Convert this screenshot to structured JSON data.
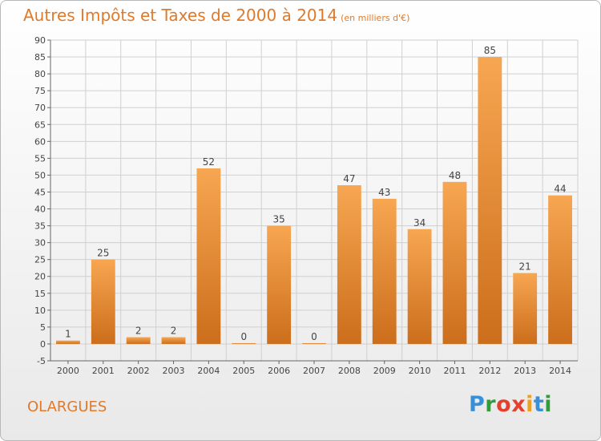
{
  "header": {
    "title": "Autres Impôts et Taxes de 2000 à 2014",
    "unit": "(en milliers d'€)"
  },
  "footer": {
    "town": "OLARGUES",
    "logo_text": "Proxiti"
  },
  "colors": {
    "title": "#e07a2a",
    "bar_light": "#f7a651",
    "bar_dark": "#cc6e1c",
    "logo": [
      "#3a8fd6",
      "#2f9e3a",
      "#e5402e",
      "#e5402e",
      "#f0a020",
      "#3a8fd6",
      "#2f9e3a"
    ]
  },
  "chart_data": {
    "type": "bar",
    "title": "Autres Impôts et Taxes de 2000 à 2014",
    "subtitle": "(en milliers d'€)",
    "categories": [
      "2000",
      "2001",
      "2002",
      "2003",
      "2004",
      "2005",
      "2006",
      "2007",
      "2008",
      "2009",
      "2010",
      "2011",
      "2012",
      "2013",
      "2014"
    ],
    "values": [
      1,
      25,
      2,
      2,
      52,
      0,
      35,
      0,
      47,
      43,
      34,
      48,
      85,
      21,
      44
    ],
    "data_labels": [
      "1",
      "25",
      "2",
      "2",
      "52",
      "0",
      "35",
      "0",
      "47",
      "43",
      "34",
      "48",
      "85",
      "21",
      "44"
    ],
    "ylim": [
      -5,
      90
    ],
    "yticks": [
      -5,
      0,
      5,
      10,
      15,
      20,
      25,
      30,
      35,
      40,
      45,
      50,
      55,
      60,
      65,
      70,
      75,
      80,
      85,
      90
    ],
    "grid": true,
    "legend": "none"
  }
}
